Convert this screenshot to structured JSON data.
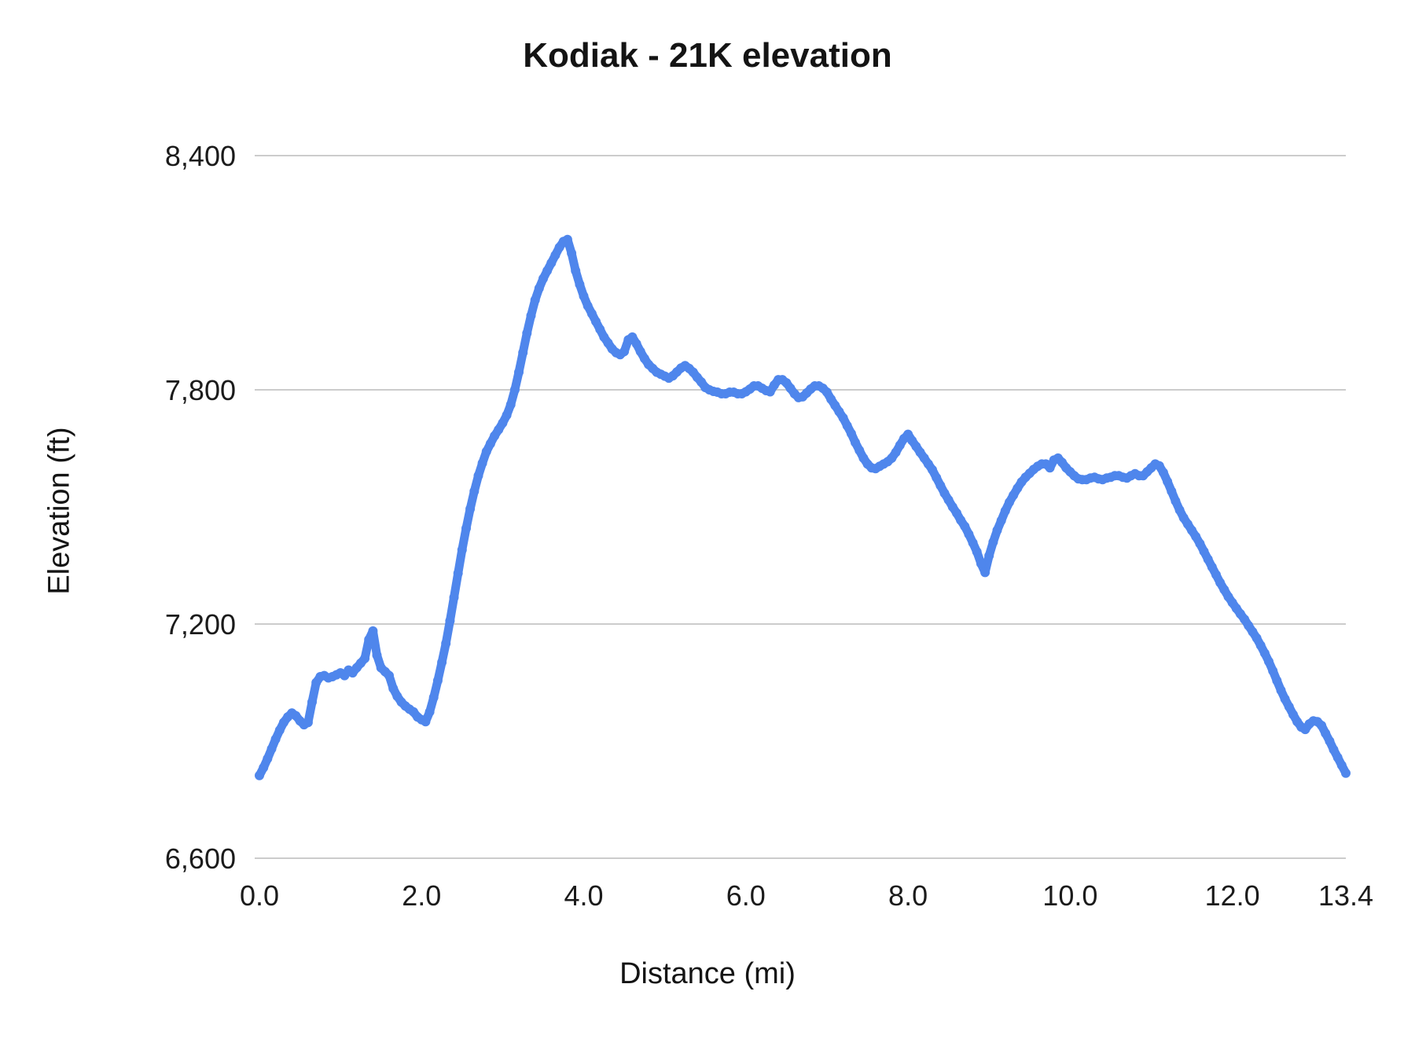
{
  "chart": {
    "title": "Kodiak - 21K elevation",
    "xlabel": "Distance (mi)",
    "ylabel": "Elevation (ft)"
  },
  "chart_data": {
    "type": "scatter",
    "title": "Kodiak - 21K elevation",
    "xlabel": "Distance (mi)",
    "ylabel": "Elevation (ft)",
    "xlim": [
      0,
      13.4
    ],
    "ylim": [
      6600,
      8400
    ],
    "grid": "horizontal",
    "legend": "none",
    "point_color": "#4f86ec",
    "gridline_color": "#cccccc",
    "x_ticks": [
      {
        "value": 0.0,
        "label": "0.0"
      },
      {
        "value": 2.0,
        "label": "2.0"
      },
      {
        "value": 4.0,
        "label": "4.0"
      },
      {
        "value": 6.0,
        "label": "6.0"
      },
      {
        "value": 8.0,
        "label": "8.0"
      },
      {
        "value": 10.0,
        "label": "10.0"
      },
      {
        "value": 12.0,
        "label": "12.0"
      },
      {
        "value": 13.4,
        "label": "13.4"
      }
    ],
    "y_ticks": [
      {
        "value": 6600,
        "label": "6,600"
      },
      {
        "value": 7200,
        "label": "7,200"
      },
      {
        "value": 7800,
        "label": "7,800"
      },
      {
        "value": 8400,
        "label": "8,400"
      }
    ],
    "series": [
      {
        "name": "elevation",
        "points": [
          [
            0.0,
            6812
          ],
          [
            0.05,
            6832
          ],
          [
            0.1,
            6855
          ],
          [
            0.15,
            6880
          ],
          [
            0.2,
            6905
          ],
          [
            0.25,
            6928
          ],
          [
            0.3,
            6948
          ],
          [
            0.35,
            6962
          ],
          [
            0.4,
            6972
          ],
          [
            0.45,
            6965
          ],
          [
            0.5,
            6952
          ],
          [
            0.55,
            6942
          ],
          [
            0.6,
            6948
          ],
          [
            0.65,
            7000
          ],
          [
            0.7,
            7050
          ],
          [
            0.75,
            7065
          ],
          [
            0.8,
            7068
          ],
          [
            0.85,
            7062
          ],
          [
            0.9,
            7065
          ],
          [
            0.95,
            7070
          ],
          [
            1.0,
            7075
          ],
          [
            1.05,
            7068
          ],
          [
            1.1,
            7082
          ],
          [
            1.15,
            7075
          ],
          [
            1.2,
            7088
          ],
          [
            1.25,
            7100
          ],
          [
            1.3,
            7112
          ],
          [
            1.35,
            7160
          ],
          [
            1.4,
            7182
          ],
          [
            1.45,
            7120
          ],
          [
            1.5,
            7088
          ],
          [
            1.55,
            7078
          ],
          [
            1.6,
            7068
          ],
          [
            1.65,
            7035
          ],
          [
            1.7,
            7015
          ],
          [
            1.75,
            7000
          ],
          [
            1.8,
            6990
          ],
          [
            1.85,
            6982
          ],
          [
            1.9,
            6975
          ],
          [
            1.95,
            6962
          ],
          [
            2.0,
            6955
          ],
          [
            2.05,
            6950
          ],
          [
            2.1,
            6975
          ],
          [
            2.15,
            7012
          ],
          [
            2.2,
            7055
          ],
          [
            2.25,
            7102
          ],
          [
            2.3,
            7150
          ],
          [
            2.35,
            7208
          ],
          [
            2.4,
            7268
          ],
          [
            2.45,
            7330
          ],
          [
            2.5,
            7390
          ],
          [
            2.55,
            7445
          ],
          [
            2.6,
            7495
          ],
          [
            2.65,
            7540
          ],
          [
            2.7,
            7580
          ],
          [
            2.75,
            7612
          ],
          [
            2.8,
            7642
          ],
          [
            2.85,
            7662
          ],
          [
            2.9,
            7682
          ],
          [
            2.95,
            7698
          ],
          [
            3.0,
            7715
          ],
          [
            3.05,
            7735
          ],
          [
            3.1,
            7762
          ],
          [
            3.15,
            7800
          ],
          [
            3.2,
            7845
          ],
          [
            3.25,
            7895
          ],
          [
            3.3,
            7945
          ],
          [
            3.35,
            7990
          ],
          [
            3.4,
            8030
          ],
          [
            3.45,
            8060
          ],
          [
            3.5,
            8085
          ],
          [
            3.55,
            8105
          ],
          [
            3.6,
            8125
          ],
          [
            3.65,
            8145
          ],
          [
            3.7,
            8165
          ],
          [
            3.75,
            8180
          ],
          [
            3.8,
            8185
          ],
          [
            3.85,
            8150
          ],
          [
            3.9,
            8105
          ],
          [
            3.95,
            8070
          ],
          [
            4.0,
            8040
          ],
          [
            4.05,
            8015
          ],
          [
            4.1,
            7995
          ],
          [
            4.15,
            7975
          ],
          [
            4.2,
            7955
          ],
          [
            4.25,
            7935
          ],
          [
            4.3,
            7920
          ],
          [
            4.35,
            7905
          ],
          [
            4.4,
            7895
          ],
          [
            4.45,
            7890
          ],
          [
            4.5,
            7898
          ],
          [
            4.55,
            7928
          ],
          [
            4.6,
            7935
          ],
          [
            4.65,
            7918
          ],
          [
            4.7,
            7898
          ],
          [
            4.75,
            7880
          ],
          [
            4.8,
            7865
          ],
          [
            4.85,
            7855
          ],
          [
            4.9,
            7845
          ],
          [
            4.95,
            7840
          ],
          [
            5.0,
            7835
          ],
          [
            5.05,
            7830
          ],
          [
            5.1,
            7836
          ],
          [
            5.15,
            7846
          ],
          [
            5.2,
            7856
          ],
          [
            5.25,
            7862
          ],
          [
            5.3,
            7855
          ],
          [
            5.35,
            7845
          ],
          [
            5.4,
            7832
          ],
          [
            5.45,
            7820
          ],
          [
            5.5,
            7806
          ],
          [
            5.55,
            7800
          ],
          [
            5.6,
            7796
          ],
          [
            5.65,
            7794
          ],
          [
            5.7,
            7790
          ],
          [
            5.75,
            7790
          ],
          [
            5.8,
            7794
          ],
          [
            5.85,
            7794
          ],
          [
            5.9,
            7790
          ],
          [
            5.95,
            7790
          ],
          [
            6.0,
            7795
          ],
          [
            6.05,
            7802
          ],
          [
            6.1,
            7810
          ],
          [
            6.15,
            7810
          ],
          [
            6.2,
            7804
          ],
          [
            6.25,
            7798
          ],
          [
            6.3,
            7795
          ],
          [
            6.35,
            7812
          ],
          [
            6.4,
            7826
          ],
          [
            6.45,
            7826
          ],
          [
            6.5,
            7818
          ],
          [
            6.55,
            7804
          ],
          [
            6.6,
            7790
          ],
          [
            6.65,
            7780
          ],
          [
            6.7,
            7782
          ],
          [
            6.75,
            7792
          ],
          [
            6.8,
            7802
          ],
          [
            6.85,
            7810
          ],
          [
            6.9,
            7810
          ],
          [
            6.95,
            7804
          ],
          [
            7.0,
            7794
          ],
          [
            7.05,
            7776
          ],
          [
            7.1,
            7760
          ],
          [
            7.15,
            7744
          ],
          [
            7.2,
            7728
          ],
          [
            7.25,
            7708
          ],
          [
            7.3,
            7688
          ],
          [
            7.35,
            7665
          ],
          [
            7.4,
            7645
          ],
          [
            7.45,
            7625
          ],
          [
            7.5,
            7610
          ],
          [
            7.55,
            7600
          ],
          [
            7.6,
            7598
          ],
          [
            7.65,
            7604
          ],
          [
            7.7,
            7610
          ],
          [
            7.75,
            7616
          ],
          [
            7.8,
            7625
          ],
          [
            7.85,
            7640
          ],
          [
            7.9,
            7658
          ],
          [
            7.95,
            7675
          ],
          [
            8.0,
            7686
          ],
          [
            8.05,
            7670
          ],
          [
            8.1,
            7655
          ],
          [
            8.15,
            7640
          ],
          [
            8.2,
            7625
          ],
          [
            8.25,
            7610
          ],
          [
            8.3,
            7595
          ],
          [
            8.35,
            7575
          ],
          [
            8.4,
            7555
          ],
          [
            8.45,
            7535
          ],
          [
            8.5,
            7518
          ],
          [
            8.55,
            7500
          ],
          [
            8.6,
            7484
          ],
          [
            8.65,
            7466
          ],
          [
            8.7,
            7450
          ],
          [
            8.75,
            7430
          ],
          [
            8.8,
            7408
          ],
          [
            8.85,
            7385
          ],
          [
            8.9,
            7355
          ],
          [
            8.95,
            7332
          ],
          [
            9.0,
            7375
          ],
          [
            9.05,
            7410
          ],
          [
            9.1,
            7440
          ],
          [
            9.15,
            7465
          ],
          [
            9.2,
            7490
          ],
          [
            9.25,
            7512
          ],
          [
            9.3,
            7530
          ],
          [
            9.35,
            7548
          ],
          [
            9.4,
            7564
          ],
          [
            9.45,
            7576
          ],
          [
            9.5,
            7586
          ],
          [
            9.55,
            7596
          ],
          [
            9.6,
            7604
          ],
          [
            9.65,
            7610
          ],
          [
            9.7,
            7610
          ],
          [
            9.75,
            7600
          ],
          [
            9.8,
            7620
          ],
          [
            9.85,
            7625
          ],
          [
            9.9,
            7614
          ],
          [
            9.95,
            7600
          ],
          [
            10.0,
            7590
          ],
          [
            10.05,
            7580
          ],
          [
            10.1,
            7572
          ],
          [
            10.15,
            7570
          ],
          [
            10.2,
            7570
          ],
          [
            10.25,
            7574
          ],
          [
            10.3,
            7576
          ],
          [
            10.35,
            7572
          ],
          [
            10.4,
            7570
          ],
          [
            10.45,
            7574
          ],
          [
            10.5,
            7576
          ],
          [
            10.55,
            7580
          ],
          [
            10.6,
            7580
          ],
          [
            10.65,
            7576
          ],
          [
            10.7,
            7574
          ],
          [
            10.75,
            7580
          ],
          [
            10.8,
            7585
          ],
          [
            10.85,
            7580
          ],
          [
            10.9,
            7580
          ],
          [
            10.95,
            7590
          ],
          [
            11.0,
            7600
          ],
          [
            11.05,
            7610
          ],
          [
            11.1,
            7605
          ],
          [
            11.15,
            7588
          ],
          [
            11.2,
            7565
          ],
          [
            11.25,
            7540
          ],
          [
            11.3,
            7515
          ],
          [
            11.35,
            7492
          ],
          [
            11.4,
            7472
          ],
          [
            11.45,
            7456
          ],
          [
            11.5,
            7440
          ],
          [
            11.55,
            7424
          ],
          [
            11.6,
            7406
          ],
          [
            11.65,
            7386
          ],
          [
            11.7,
            7366
          ],
          [
            11.75,
            7346
          ],
          [
            11.8,
            7326
          ],
          [
            11.85,
            7306
          ],
          [
            11.9,
            7288
          ],
          [
            11.95,
            7270
          ],
          [
            12.0,
            7255
          ],
          [
            12.05,
            7240
          ],
          [
            12.1,
            7226
          ],
          [
            12.15,
            7212
          ],
          [
            12.2,
            7196
          ],
          [
            12.25,
            7180
          ],
          [
            12.3,
            7164
          ],
          [
            12.35,
            7145
          ],
          [
            12.4,
            7125
          ],
          [
            12.45,
            7104
          ],
          [
            12.5,
            7080
          ],
          [
            12.55,
            7055
          ],
          [
            12.6,
            7030
          ],
          [
            12.65,
            7008
          ],
          [
            12.7,
            6988
          ],
          [
            12.75,
            6968
          ],
          [
            12.8,
            6950
          ],
          [
            12.85,
            6936
          ],
          [
            12.9,
            6930
          ],
          [
            12.95,
            6944
          ],
          [
            13.0,
            6952
          ],
          [
            13.05,
            6950
          ],
          [
            13.1,
            6940
          ],
          [
            13.15,
            6920
          ],
          [
            13.2,
            6900
          ],
          [
            13.25,
            6878
          ],
          [
            13.3,
            6858
          ],
          [
            13.35,
            6838
          ],
          [
            13.4,
            6818
          ]
        ]
      }
    ]
  }
}
